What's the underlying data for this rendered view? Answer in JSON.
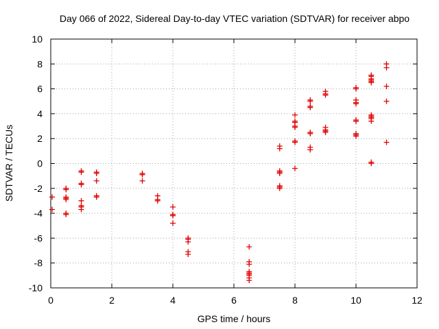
{
  "chart_data": {
    "type": "scatter",
    "title": "Day 066 of 2022, Sidereal Day-to-day VTEC variation (SDTVAR) for receiver abpo",
    "xlabel": "GPS time / hours",
    "ylabel": "SDTVAR / TECUs",
    "xlim": [
      0,
      12
    ],
    "ylim": [
      -10,
      10
    ],
    "xticks": [
      "0",
      "2",
      "4",
      "6",
      "8",
      "10",
      "12"
    ],
    "yticks": [
      "-10",
      "-8",
      "-6",
      "-4",
      "-2",
      "0",
      "2",
      "4",
      "6",
      "8",
      "10"
    ],
    "grid": true,
    "marker": "plus",
    "series": [
      {
        "name": "SDTVAR",
        "color": "#e00000",
        "points": [
          [
            0.0,
            -2.7
          ],
          [
            0.0,
            -3.7
          ],
          [
            0.5,
            -2.0
          ],
          [
            0.5,
            -2.1
          ],
          [
            0.5,
            -2.7
          ],
          [
            0.5,
            -2.8
          ],
          [
            0.5,
            -2.9
          ],
          [
            0.5,
            -4.0
          ],
          [
            0.5,
            -4.1
          ],
          [
            1.0,
            -0.6
          ],
          [
            1.0,
            -0.7
          ],
          [
            1.0,
            -1.6
          ],
          [
            1.0,
            -1.7
          ],
          [
            1.0,
            -3.0
          ],
          [
            1.0,
            -3.4
          ],
          [
            1.0,
            -3.5
          ],
          [
            1.0,
            -3.7
          ],
          [
            1.5,
            -0.7
          ],
          [
            1.5,
            -0.8
          ],
          [
            1.5,
            -1.4
          ],
          [
            1.5,
            -2.6
          ],
          [
            1.5,
            -2.7
          ],
          [
            3.0,
            -0.8
          ],
          [
            3.0,
            -0.9
          ],
          [
            3.0,
            -1.4
          ],
          [
            3.5,
            -2.6
          ],
          [
            3.5,
            -2.9
          ],
          [
            3.5,
            -3.0
          ],
          [
            4.0,
            -3.5
          ],
          [
            4.0,
            -4.1
          ],
          [
            4.0,
            -4.2
          ],
          [
            4.0,
            -4.8
          ],
          [
            4.5,
            -6.0
          ],
          [
            4.5,
            -6.1
          ],
          [
            4.5,
            -6.3
          ],
          [
            4.5,
            -7.1
          ],
          [
            4.5,
            -7.3
          ],
          [
            6.5,
            -6.7
          ],
          [
            6.5,
            -7.9
          ],
          [
            6.5,
            -8.1
          ],
          [
            6.5,
            -8.7
          ],
          [
            6.5,
            -8.8
          ],
          [
            6.5,
            -8.9
          ],
          [
            6.5,
            -9.0
          ],
          [
            6.5,
            -9.2
          ],
          [
            6.5,
            -9.4
          ],
          [
            7.5,
            1.4
          ],
          [
            7.5,
            1.2
          ],
          [
            7.5,
            -0.6
          ],
          [
            7.5,
            -0.7
          ],
          [
            7.5,
            -0.8
          ],
          [
            7.5,
            -1.8
          ],
          [
            7.5,
            -1.9
          ],
          [
            7.5,
            -2.0
          ],
          [
            8.0,
            3.9
          ],
          [
            8.0,
            3.4
          ],
          [
            8.0,
            3.3
          ],
          [
            8.0,
            3.0
          ],
          [
            8.0,
            2.9
          ],
          [
            8.0,
            1.8
          ],
          [
            8.0,
            1.7
          ],
          [
            8.0,
            -0.4
          ],
          [
            8.5,
            5.1
          ],
          [
            8.5,
            5.0
          ],
          [
            8.5,
            4.6
          ],
          [
            8.5,
            4.5
          ],
          [
            8.5,
            2.5
          ],
          [
            8.5,
            2.4
          ],
          [
            8.5,
            1.3
          ],
          [
            8.5,
            1.1
          ],
          [
            9.0,
            5.8
          ],
          [
            9.0,
            5.6
          ],
          [
            9.0,
            5.5
          ],
          [
            9.0,
            2.9
          ],
          [
            9.0,
            2.7
          ],
          [
            9.0,
            2.6
          ],
          [
            9.0,
            2.5
          ],
          [
            10.0,
            6.1
          ],
          [
            10.0,
            6.0
          ],
          [
            10.0,
            5.1
          ],
          [
            10.0,
            4.9
          ],
          [
            10.0,
            4.8
          ],
          [
            10.0,
            3.5
          ],
          [
            10.0,
            3.4
          ],
          [
            10.0,
            2.4
          ],
          [
            10.0,
            2.3
          ],
          [
            10.0,
            2.2
          ],
          [
            10.5,
            7.1
          ],
          [
            10.5,
            7.0
          ],
          [
            10.5,
            6.8
          ],
          [
            10.5,
            6.7
          ],
          [
            10.5,
            6.6
          ],
          [
            10.5,
            6.5
          ],
          [
            10.5,
            3.9
          ],
          [
            10.5,
            3.8
          ],
          [
            10.5,
            3.7
          ],
          [
            10.5,
            3.6
          ],
          [
            10.5,
            3.4
          ],
          [
            10.5,
            0.1
          ],
          [
            10.5,
            0.0
          ],
          [
            11.0,
            8.0
          ],
          [
            11.0,
            7.7
          ],
          [
            11.0,
            6.2
          ],
          [
            11.0,
            5.0
          ],
          [
            11.0,
            1.7
          ]
        ]
      }
    ]
  }
}
